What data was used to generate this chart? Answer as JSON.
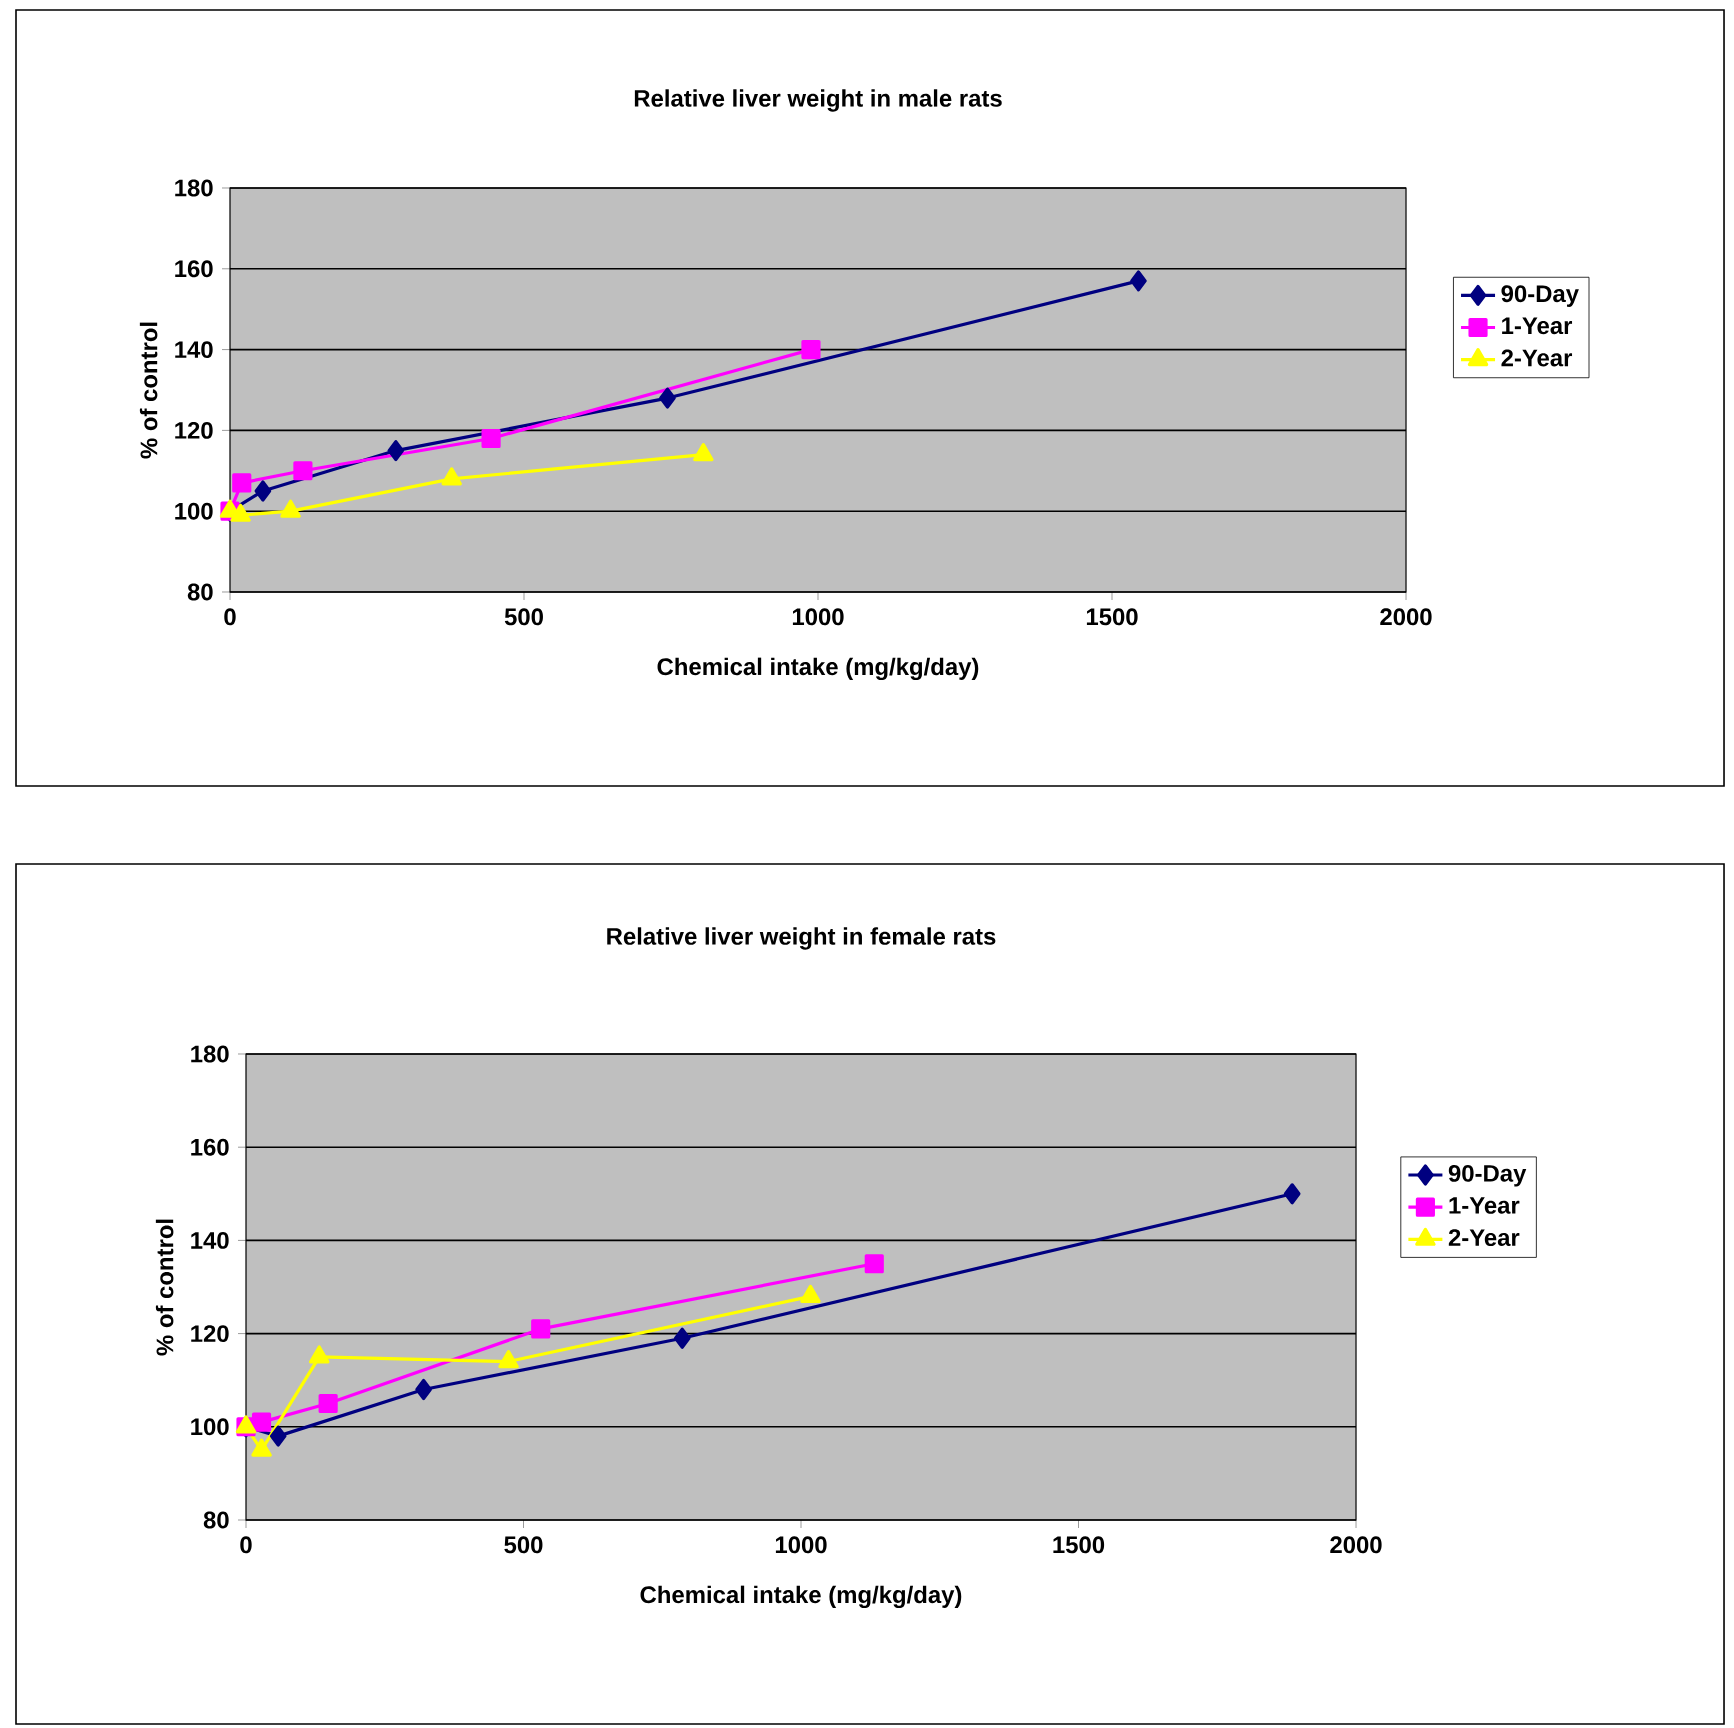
{
  "chart_data": [
    {
      "type": "line",
      "title": "Relative liver weight in male rats",
      "xlabel": "Chemical intake (mg/kg/day)",
      "ylabel": "% of control",
      "xlim": [
        0,
        2000
      ],
      "ylim": [
        80,
        180
      ],
      "xticks": [
        0,
        500,
        1000,
        1500,
        2000
      ],
      "yticks": [
        80,
        100,
        120,
        140,
        160,
        180
      ],
      "grid": "y",
      "legend": "right",
      "series": [
        {
          "name": "90-Day",
          "color": "#000080",
          "marker": "diamond",
          "x": [
            0,
            56,
            282,
            744,
            1545
          ],
          "values": [
            100,
            105,
            115,
            128,
            157
          ]
        },
        {
          "name": "1-Year",
          "color": "#ff00ff",
          "marker": "square",
          "x": [
            0,
            20,
            124,
            444,
            988
          ],
          "values": [
            100,
            107,
            110,
            118,
            140
          ]
        },
        {
          "name": "2-Year",
          "color": "#ffff00",
          "marker": "triangle",
          "x": [
            0,
            18,
            103,
            377,
            805
          ],
          "values": [
            100,
            99,
            100,
            108,
            114
          ]
        }
      ]
    },
    {
      "type": "line",
      "title": "Relative liver weight in female rats",
      "xlabel": "Chemical intake (mg/kg/day)",
      "ylabel": "% of control",
      "xlim": [
        0,
        2000
      ],
      "ylim": [
        80,
        180
      ],
      "xticks": [
        0,
        500,
        1000,
        1500,
        2000
      ],
      "yticks": [
        80,
        100,
        120,
        140,
        160,
        180
      ],
      "grid": "y",
      "legend": "right",
      "series": [
        {
          "name": "90-Day",
          "color": "#000080",
          "marker": "diamond",
          "x": [
            0,
            58,
            320,
            786,
            1885
          ],
          "values": [
            100,
            98,
            108,
            119,
            150
          ]
        },
        {
          "name": "1-Year",
          "color": "#ff00ff",
          "marker": "square",
          "x": [
            0,
            28,
            148,
            531,
            1132
          ],
          "values": [
            100,
            101,
            105,
            121,
            135
          ]
        },
        {
          "name": "2-Year",
          "color": "#ffff00",
          "marker": "triangle",
          "x": [
            0,
            28,
            132,
            473,
            1017
          ],
          "values": [
            100,
            95,
            115,
            114,
            128
          ]
        }
      ]
    }
  ]
}
